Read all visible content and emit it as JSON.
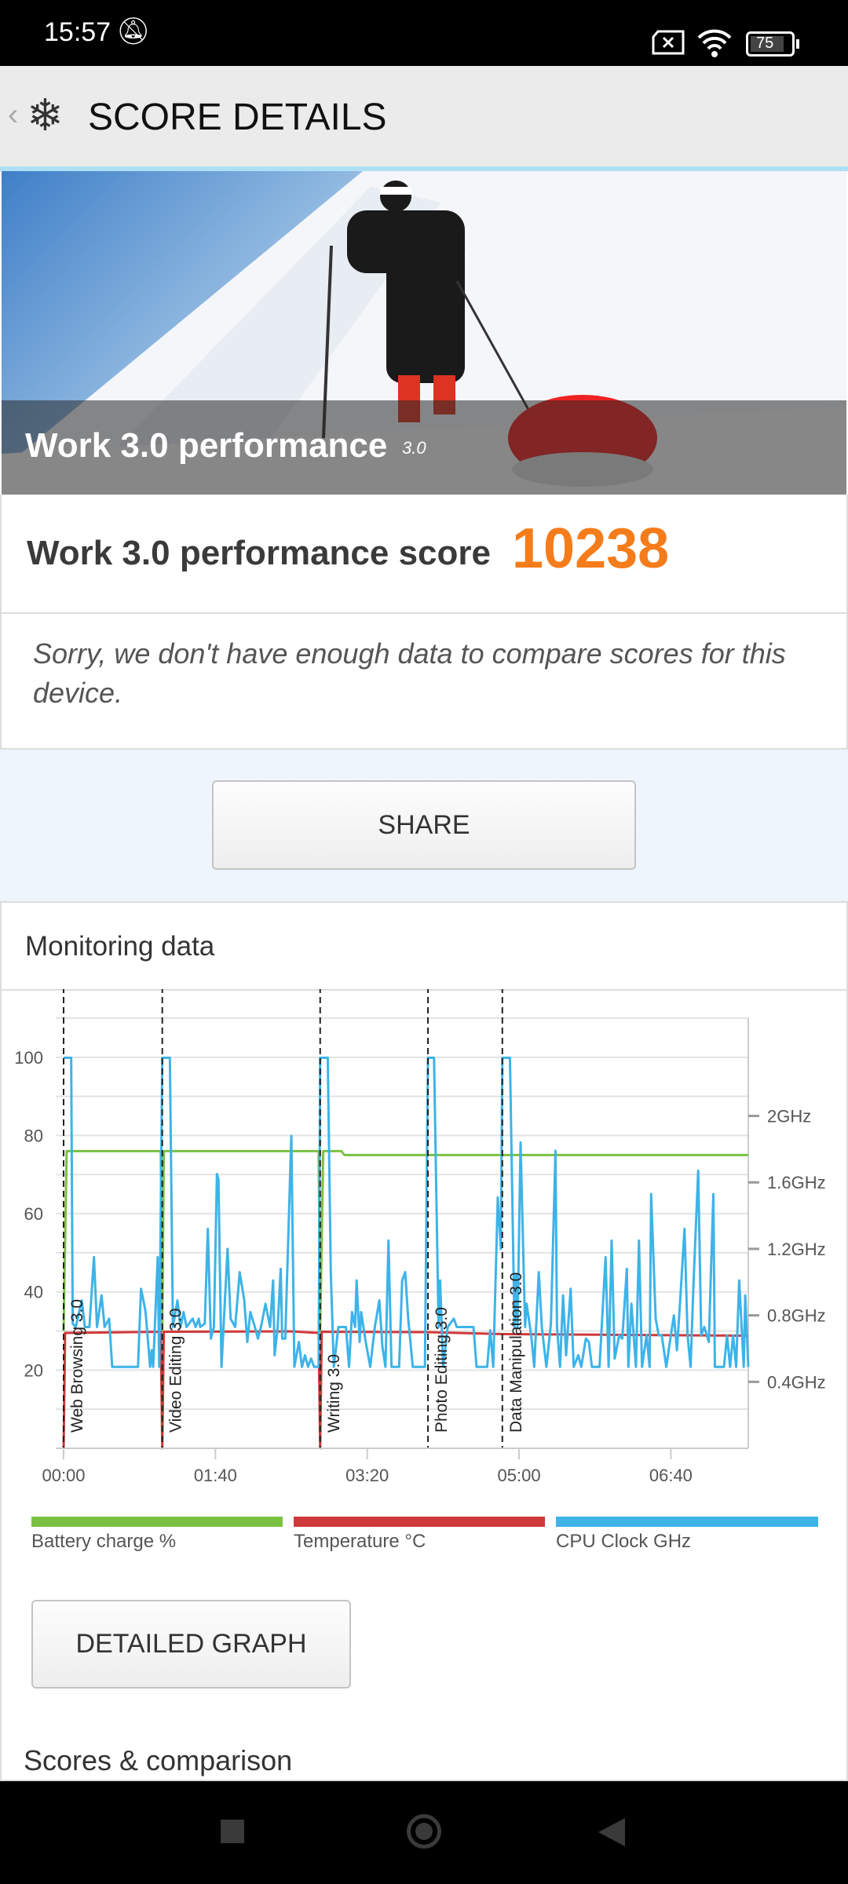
{
  "status_bar": {
    "time": "15:57",
    "battery": "75",
    "icons": [
      "bell-off-icon",
      "sim-x-icon",
      "wifi-icon",
      "battery-icon"
    ]
  },
  "header": {
    "title": "SCORE DETAILS",
    "icon": "snowflake-icon",
    "back": "chevron-left-icon"
  },
  "hero": {
    "title": "Work 3.0 performance",
    "version": "3.0"
  },
  "score": {
    "label": "Work 3.0 performance score",
    "value": "10238",
    "color": "#f57c1a"
  },
  "comparison_message": "Sorry, we don't have enough data to compare scores for this device.",
  "share_label": "SHARE",
  "monitoring": {
    "title": "Monitoring data",
    "detailed_graph_label": "DETAILED GRAPH"
  },
  "scores_comparison_title": "Scores & comparison",
  "chart_data": {
    "type": "line",
    "xlim": [
      0,
      451
    ],
    "ylim": [
      0,
      110
    ],
    "left_ticks": [
      20,
      40,
      60,
      80,
      100
    ],
    "right_ticks": [
      {
        "v": 0.4,
        "label": "0.4GHz"
      },
      {
        "v": 0.8,
        "label": "0.8GHz"
      },
      {
        "v": 1.2,
        "label": "1.2GHz"
      },
      {
        "v": 1.6,
        "label": "1.6GHz"
      },
      {
        "v": 2.0,
        "label": "2GHz"
      }
    ],
    "right_max_ghz": 2.353,
    "x_ticks": [
      {
        "v": 0,
        "label": "00:00"
      },
      {
        "v": 100,
        "label": "01:40"
      },
      {
        "v": 200,
        "label": "03:20"
      },
      {
        "v": 300,
        "label": "05:00"
      },
      {
        "v": 400,
        "label": "06:40"
      }
    ],
    "grid": true,
    "markers": [
      {
        "t": 0,
        "label": "Web Browsing 3.0"
      },
      {
        "t": 65,
        "label": "Video Editing 3.0"
      },
      {
        "t": 169,
        "label": "Writing 3.0"
      },
      {
        "t": 240,
        "label": "Photo Editing 3.0"
      },
      {
        "t": 289,
        "label": "Data Manipulation 3.0"
      }
    ],
    "series": [
      {
        "name": "Battery charge %",
        "color": "#7ac143",
        "axis": "left",
        "points": [
          [
            0,
            30
          ],
          [
            2,
            76
          ],
          [
            64,
            76
          ],
          [
            65,
            30
          ],
          [
            66,
            76
          ],
          [
            168,
            76
          ],
          [
            169,
            30
          ],
          [
            171,
            76
          ],
          [
            183,
            76
          ],
          [
            185,
            75
          ],
          [
            451,
            75
          ]
        ]
      },
      {
        "name": "Temperature °C",
        "color": "#d0393b",
        "axis": "left",
        "points": [
          [
            0,
            0
          ],
          [
            1,
            29.5
          ],
          [
            64,
            29.8
          ],
          [
            65,
            0
          ],
          [
            66,
            29.8
          ],
          [
            150,
            29.9
          ],
          [
            168,
            29.5
          ],
          [
            169,
            0
          ],
          [
            170,
            29.8
          ],
          [
            240,
            29.7
          ],
          [
            290,
            29.2
          ],
          [
            451,
            28.8
          ]
        ]
      },
      {
        "name": "CPU Clock GHz",
        "color": "#3db3e8",
        "axis": "right",
        "points": [
          [
            0,
            2.35
          ],
          [
            5,
            2.35
          ],
          [
            6,
            0.75
          ],
          [
            8,
            0.73
          ],
          [
            12,
            0.89
          ],
          [
            14,
            0.73
          ],
          [
            17,
            0.73
          ],
          [
            20,
            1.15
          ],
          [
            22,
            0.73
          ],
          [
            25,
            0.92
          ],
          [
            27,
            0.73
          ],
          [
            30,
            0.78
          ],
          [
            32,
            0.49
          ],
          [
            49,
            0.49
          ],
          [
            51,
            0.96
          ],
          [
            53,
            0.87
          ],
          [
            54,
            0.82
          ],
          [
            57,
            0.49
          ],
          [
            58,
            0.59
          ],
          [
            59,
            0.49
          ],
          [
            62,
            1.15
          ],
          [
            63,
            0.49
          ],
          [
            65,
            2.35
          ],
          [
            70,
            2.35
          ],
          [
            72,
            0.73
          ],
          [
            75,
            0.89
          ],
          [
            77,
            0.73
          ],
          [
            79,
            0.82
          ],
          [
            81,
            0.73
          ],
          [
            85,
            0.78
          ],
          [
            87,
            0.73
          ],
          [
            89,
            0.78
          ],
          [
            90,
            0.73
          ],
          [
            93,
            0.75
          ],
          [
            95,
            1.32
          ],
          [
            97,
            0.66
          ],
          [
            99,
            0.73
          ],
          [
            101,
            1.65
          ],
          [
            102,
            1.62
          ],
          [
            104,
            0.49
          ],
          [
            108,
            1.2
          ],
          [
            110,
            0.78
          ],
          [
            113,
            0.73
          ],
          [
            116,
            1.06
          ],
          [
            119,
            0.89
          ],
          [
            121,
            0.64
          ],
          [
            123,
            0.82
          ],
          [
            126,
            0.73
          ],
          [
            128,
            0.66
          ],
          [
            130,
            0.73
          ],
          [
            133,
            0.87
          ],
          [
            136,
            0.73
          ],
          [
            138,
            1.01
          ],
          [
            139,
            0.56
          ],
          [
            141,
            0.73
          ],
          [
            143,
            1.08
          ],
          [
            144,
            0.66
          ],
          [
            146,
            0.66
          ],
          [
            150,
            1.88
          ],
          [
            152,
            0.49
          ],
          [
            155,
            0.64
          ],
          [
            157,
            0.49
          ],
          [
            159,
            0.56
          ],
          [
            161,
            0.49
          ],
          [
            163,
            0.54
          ],
          [
            165,
            0.49
          ],
          [
            168,
            0.49
          ],
          [
            169,
            2.35
          ],
          [
            174,
            2.35
          ],
          [
            176,
            1.06
          ],
          [
            178,
            0.49
          ],
          [
            181,
            0.73
          ],
          [
            186,
            0.73
          ],
          [
            188,
            0.49
          ],
          [
            190,
            0.82
          ],
          [
            192,
            0.73
          ],
          [
            193,
            1.01
          ],
          [
            195,
            0.64
          ],
          [
            196,
            0.82
          ],
          [
            199,
            0.64
          ],
          [
            202,
            0.49
          ],
          [
            205,
            0.73
          ],
          [
            208,
            0.89
          ],
          [
            210,
            0.61
          ],
          [
            212,
            0.49
          ],
          [
            214,
            1.25
          ],
          [
            216,
            0.49
          ],
          [
            221,
            0.49
          ],
          [
            223,
            1.01
          ],
          [
            225,
            1.06
          ],
          [
            227,
            0.78
          ],
          [
            230,
            0.49
          ],
          [
            238,
            0.49
          ],
          [
            240,
            2.35
          ],
          [
            244,
            2.35
          ],
          [
            247,
            0.73
          ],
          [
            248,
            1.01
          ],
          [
            250,
            0.49
          ],
          [
            253,
            0.73
          ],
          [
            257,
            0.78
          ],
          [
            259,
            0.73
          ],
          [
            270,
            0.73
          ],
          [
            272,
            0.49
          ],
          [
            279,
            0.49
          ],
          [
            281,
            0.71
          ],
          [
            283,
            0.49
          ],
          [
            286,
            1.51
          ],
          [
            288,
            1.2
          ],
          [
            289,
            2.35
          ],
          [
            294,
            2.35
          ],
          [
            297,
            0.73
          ],
          [
            298,
            1.04
          ],
          [
            299,
            0.73
          ],
          [
            301,
            1.84
          ],
          [
            304,
            0.73
          ],
          [
            305,
            0.87
          ],
          [
            308,
            0.68
          ],
          [
            310,
            0.49
          ],
          [
            313,
            1.06
          ],
          [
            315,
            0.73
          ],
          [
            318,
            0.49
          ],
          [
            321,
            0.75
          ],
          [
            324,
            1.79
          ],
          [
            325,
            0.73
          ],
          [
            327,
            0.49
          ],
          [
            329,
            0.92
          ],
          [
            331,
            0.56
          ],
          [
            334,
            0.96
          ],
          [
            336,
            0.49
          ],
          [
            339,
            0.56
          ],
          [
            341,
            0.49
          ],
          [
            344,
            0.66
          ],
          [
            346,
            0.64
          ],
          [
            348,
            0.49
          ],
          [
            353,
            0.49
          ],
          [
            357,
            1.15
          ],
          [
            359,
            0.49
          ],
          [
            361,
            1.25
          ],
          [
            363,
            0.54
          ],
          [
            366,
            0.68
          ],
          [
            368,
            0.66
          ],
          [
            371,
            1.08
          ],
          [
            372,
            0.49
          ],
          [
            374,
            0.87
          ],
          [
            377,
            0.49
          ],
          [
            379,
            1.25
          ],
          [
            381,
            0.49
          ],
          [
            384,
            0.68
          ],
          [
            386,
            0.49
          ],
          [
            387,
            1.53
          ],
          [
            390,
            0.78
          ],
          [
            392,
            0.68
          ],
          [
            394,
            0.68
          ],
          [
            397,
            0.49
          ],
          [
            400,
            0.68
          ],
          [
            402,
            0.8
          ],
          [
            404,
            0.59
          ],
          [
            406,
            0.87
          ],
          [
            409,
            1.32
          ],
          [
            411,
            0.68
          ],
          [
            413,
            0.49
          ],
          [
            415,
            1.01
          ],
          [
            418,
            1.67
          ],
          [
            420,
            0.68
          ],
          [
            422,
            0.73
          ],
          [
            425,
            0.64
          ],
          [
            428,
            1.53
          ],
          [
            429,
            0.49
          ],
          [
            435,
            0.49
          ],
          [
            437,
            0.68
          ],
          [
            439,
            0.49
          ],
          [
            441,
            0.68
          ],
          [
            443,
            0.49
          ],
          [
            445,
            1.01
          ],
          [
            448,
            0.49
          ],
          [
            449,
            0.92
          ],
          [
            451,
            0.49
          ]
        ]
      }
    ]
  }
}
